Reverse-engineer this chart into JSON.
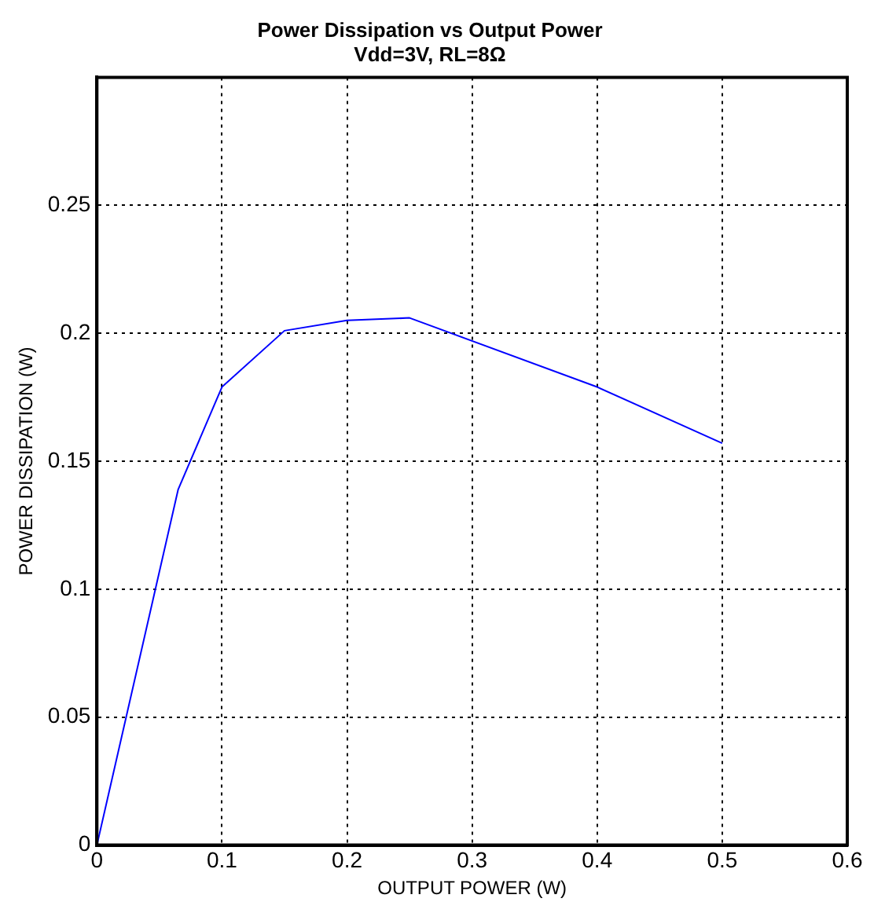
{
  "chart_data": {
    "type": "line",
    "title": "Power Dissipation vs Output Power",
    "subtitle": "Vdd=3V, RL=8Ω",
    "xlabel": "OUTPUT POWER (W)",
    "ylabel": "POWER DISSIPATION (W)",
    "x": [
      0,
      0.065,
      0.1,
      0.15,
      0.2,
      0.25,
      0.4,
      0.5
    ],
    "series": [
      {
        "color": "#0000ff",
        "values": [
          0,
          0.139,
          0.179,
          0.201,
          0.205,
          0.206,
          0.179,
          0.157
        ]
      }
    ],
    "xlim": [
      0,
      0.6
    ],
    "xticks": [
      0,
      0.1,
      0.2,
      0.3,
      0.4,
      0.5,
      0.6
    ],
    "ylim": [
      0,
      0.3
    ],
    "yticks": [
      0,
      0.05,
      0.1,
      0.15,
      0.2,
      0.25
    ],
    "grid": true,
    "legend": false,
    "marker": "none",
    "line_style": "solid"
  }
}
